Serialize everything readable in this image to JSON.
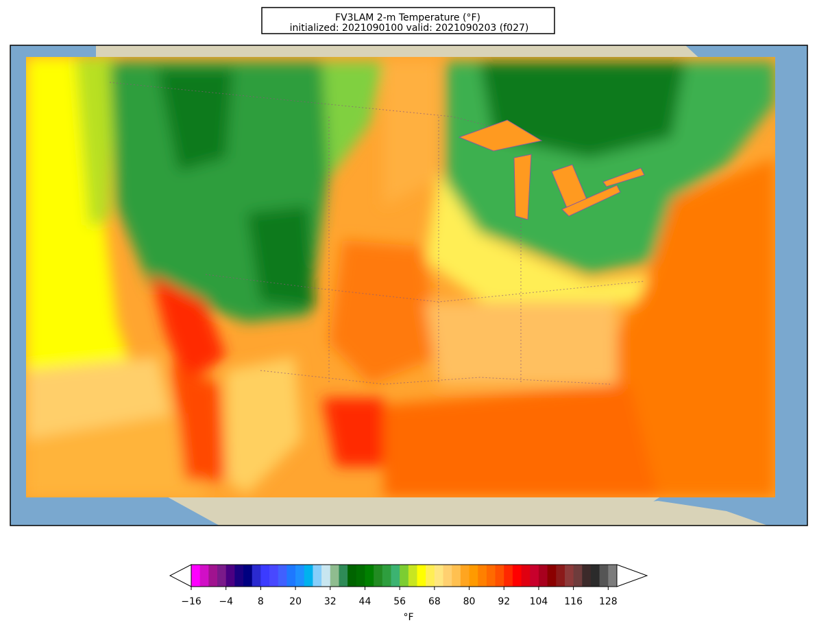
{
  "title": [
    "FV3LAM 2-m Temperature (°F)",
    "initialized: 2021090100 valid: 2021090203 (f027)"
  ],
  "colorbar": {
    "label": "°F",
    "clim": [
      -16,
      131
    ],
    "extend": "both",
    "ticks": [
      {
        "value": -16,
        "label": "−16"
      },
      {
        "value": -4,
        "label": "−4"
      },
      8,
      20,
      32,
      44,
      56,
      68,
      80,
      92,
      104,
      116,
      128
    ],
    "colors": [
      "#ff00ff",
      "#d10fc6",
      "#a0138f",
      "#7a1a8a",
      "#4b0082",
      "#1a0080",
      "#000080",
      "#2a2ad0",
      "#3b3bff",
      "#4848ff",
      "#4060ff",
      "#1e78ff",
      "#1e90ff",
      "#00b2ee",
      "#87cefa",
      "#c8e6f0",
      "#8fbc8f",
      "#2e8b57",
      "#006400",
      "#006e00",
      "#008000",
      "#228b22",
      "#2e9e3e",
      "#3cb371",
      "#7ccd32",
      "#c8e620",
      "#ffff00",
      "#ffee55",
      "#ffe680",
      "#ffd070",
      "#ffc050",
      "#ffa520",
      "#ff9a00",
      "#ff8000",
      "#ff6a00",
      "#ff5000",
      "#ff2800",
      "#ff0000",
      "#e00010",
      "#c8002c",
      "#a8001e",
      "#8b0000",
      "#8b1a1a",
      "#8c3a3a",
      "#6e3c3c",
      "#3c2a2a",
      "#2b2b2b",
      "#555555",
      "#7c7c7c"
    ]
  }
}
